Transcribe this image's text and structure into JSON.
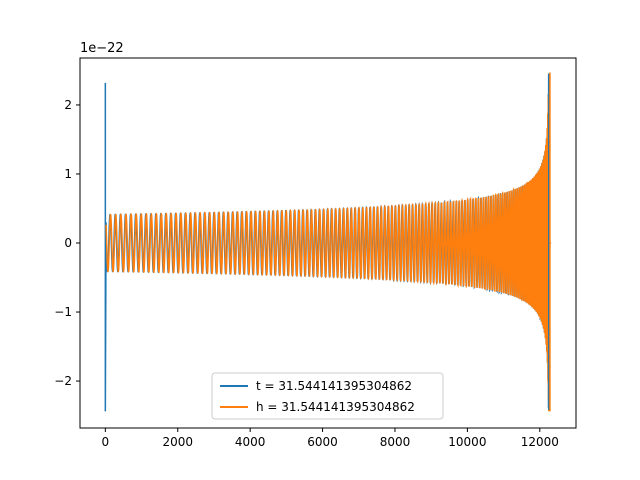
{
  "chart_data": {
    "type": "line",
    "title": "",
    "xlabel": "",
    "ylabel": "",
    "y_offset_label": "1e−22",
    "xlim": [
      -700,
      13000
    ],
    "ylim": [
      -2.68,
      2.68
    ],
    "x_ticks": [
      0,
      2000,
      4000,
      6000,
      8000,
      10000,
      12000
    ],
    "x_tick_labels": [
      "0",
      "2000",
      "4000",
      "6000",
      "8000",
      "10000",
      "12000"
    ],
    "y_ticks": [
      -2,
      -1,
      0,
      1,
      2
    ],
    "y_tick_labels": [
      "−2",
      "−1",
      "0",
      "1",
      "2"
    ],
    "grid": false,
    "legend_placement": "lower-center",
    "colors": {
      "t": "#1f77b4",
      "h": "#ff7f0e"
    },
    "series": [
      {
        "name": "t = 31.544141395304862",
        "color": "#1f77b4",
        "description_values": {
          "start_spike_x": 0,
          "start_spike_max": 2.32,
          "start_spike_min": -2.44,
          "merger_x": 12250,
          "merger_peak": 2.45,
          "merger_trough": -2.42
        }
      },
      {
        "name": "h = 31.544141395304862",
        "color": "#ff7f0e",
        "description_values": {
          "initial_amplitude": 0.41,
          "amplitude_at_10000": 0.64,
          "merger_x": 12250,
          "merger_peak": 2.47,
          "merger_trough": -2.44
        }
      }
    ]
  }
}
